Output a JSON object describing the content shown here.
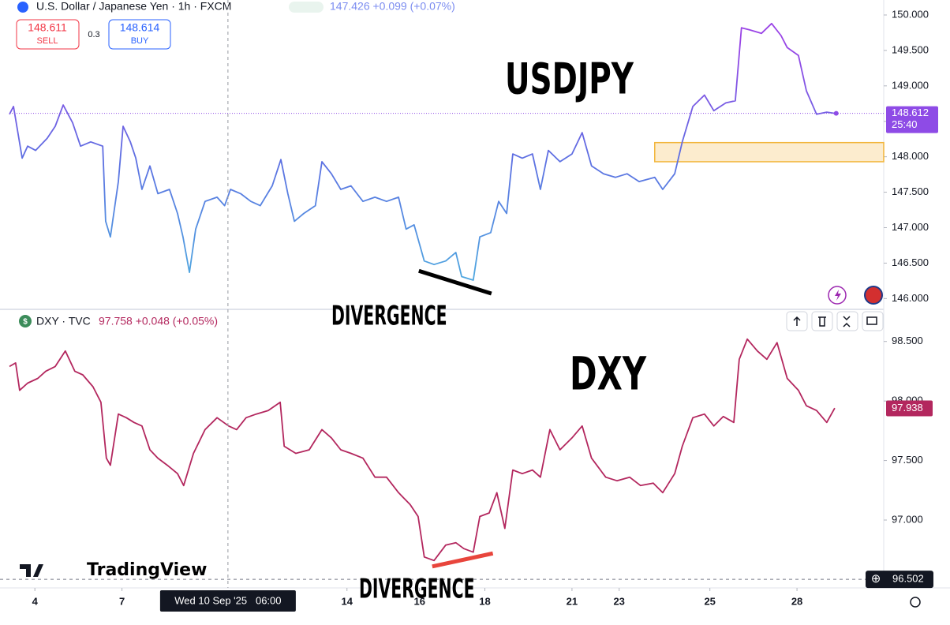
{
  "chart_data": [
    {
      "type": "line",
      "title": "U.S. Dollar / Japanese Yen · 1h · FXCM",
      "subtitle": "147.426 +0.099 (+0.07%)",
      "annotation": "USDJPY",
      "divergence_label": "DIVERGENCE",
      "gradient": [
        "#4fa6e0",
        "#5d6fe2",
        "#9a44e6"
      ],
      "x": [
        0,
        1.1,
        3.5,
        5,
        7.2,
        10.4,
        12.6,
        14.8,
        17.4,
        19.6,
        22.4,
        25.7,
        26.5,
        27.8,
        30,
        31.3,
        33.3,
        34.8,
        36.5,
        38.7,
        40.9,
        44.1,
        46.3,
        47.8,
        49.6,
        51.3,
        53.9,
        57.2,
        59.3,
        60.9,
        63.7,
        66.5,
        69.1,
        72.4,
        74.8,
        76.7,
        78.5,
        81.1,
        84.3,
        86.1,
        88.7,
        91.3,
        94.1,
        97.4,
        100.7,
        103.9,
        107.2,
        109.3,
        111.5,
        114.3,
        117,
        120.2,
        123,
        124.6,
        127.8,
        129.6,
        132.6,
        134.8,
        137,
        138.7,
        141.3,
        144.1,
        146.3,
        148.5,
        151.7,
        155,
        157.8,
        160.4,
        163.7,
        167,
        170.2,
        173.5,
        177.8,
        180,
        183.3,
        185.4,
        188.3,
        191.5,
        194.1,
        197.4,
        200,
        201.7,
        203.9,
        207.2,
        210,
        212.6,
        214.3,
        217.4,
        219.6,
        222.4,
        225.2,
        227.8
      ],
      "values": [
        148.6,
        148.71,
        147.98,
        148.15,
        148.09,
        148.26,
        148.43,
        148.73,
        148.48,
        148.15,
        148.21,
        148.15,
        147.09,
        146.87,
        147.65,
        148.43,
        148.21,
        147.98,
        147.54,
        147.87,
        147.48,
        147.54,
        147.2,
        146.87,
        146.37,
        146.98,
        147.37,
        147.43,
        147.31,
        147.54,
        147.48,
        147.37,
        147.31,
        147.59,
        147.96,
        147.48,
        147.09,
        147.2,
        147.31,
        147.93,
        147.76,
        147.54,
        147.59,
        147.37,
        147.43,
        147.37,
        147.43,
        146.98,
        147.04,
        146.53,
        146.48,
        146.53,
        146.65,
        146.31,
        146.26,
        146.87,
        146.93,
        147.37,
        147.2,
        148.04,
        147.98,
        148.04,
        147.54,
        148.09,
        147.93,
        148.04,
        148.34,
        147.87,
        147.76,
        147.71,
        147.76,
        147.65,
        147.71,
        147.54,
        147.76,
        148.21,
        148.71,
        148.87,
        148.65,
        148.76,
        148.79,
        149.82,
        149.79,
        149.74,
        149.88,
        149.71,
        149.54,
        149.43,
        148.93,
        148.6,
        148.63,
        148.61
      ],
      "xlim": [
        0,
        240.9
      ],
      "ylim": [
        145.87,
        150.1
      ],
      "yticks": [
        {
          "value": 146,
          "label": "146.000"
        },
        {
          "value": 146.5,
          "label": "146.500"
        },
        {
          "value": 147,
          "label": "147.000"
        },
        {
          "value": 147.5,
          "label": "147.500"
        },
        {
          "value": 148,
          "label": "148.000"
        },
        {
          "value": 148.5,
          "label": "148.500"
        },
        {
          "value": 149,
          "label": "149.000"
        },
        {
          "value": 149.5,
          "label": "149.500"
        },
        {
          "value": 150,
          "label": "150.000"
        }
      ],
      "last_price": 148.612,
      "last_price_color": "#8e4be6",
      "countdown": "25:40",
      "zone_start": 177.8,
      "zone": [
        147.93,
        148.2
      ],
      "zone_color": "#f2b53a",
      "trendline": {
        "x": [
          112.8,
          132.8
        ],
        "y": [
          146.39,
          146.07
        ],
        "color": "#000000"
      },
      "sell_price": "148.611",
      "sell_label": "SELL",
      "spread": "0.3",
      "buy_price": "148.614",
      "buy_label": "BUY"
    },
    {
      "type": "line",
      "title": "DXY · TVC",
      "subtitle": "97.758 +0.048 (+0.05%)",
      "annotation": "DXY",
      "divergence_label": "DIVERGENCE",
      "color": "#b3275e",
      "x": [
        0,
        1.7,
        2.8,
        5,
        7.8,
        10,
        12.6,
        15.4,
        18,
        20.2,
        23,
        25.2,
        26.7,
        27.8,
        30,
        32.2,
        34.3,
        36.5,
        38.7,
        40.9,
        43.5,
        46.3,
        48,
        50.7,
        53.9,
        57.2,
        60.4,
        62.6,
        65.2,
        68,
        71.3,
        74.6,
        75.7,
        78.9,
        82.6,
        86.1,
        88.7,
        91.3,
        94.1,
        97.4,
        100.7,
        103.9,
        107.2,
        110.4,
        112.6,
        114.3,
        117,
        120.2,
        123,
        125.2,
        127.8,
        129.6,
        132.2,
        134.3,
        136.5,
        138.7,
        141.3,
        144.1,
        146.3,
        148.9,
        151.7,
        155,
        157.8,
        160.4,
        164.3,
        167.4,
        170.9,
        173.9,
        177.4,
        180,
        183.3,
        185.4,
        188.3,
        191.5,
        194.1,
        196.7,
        199.6,
        201.1,
        203.3,
        206.1,
        208.7,
        211.5,
        214.3,
        217.4,
        219.6,
        222.4,
        225.2,
        227.4
      ],
      "values": [
        98.29,
        98.32,
        98.09,
        98.15,
        98.19,
        98.25,
        98.29,
        98.42,
        98.25,
        98.22,
        98.12,
        97.99,
        97.52,
        97.46,
        97.89,
        97.86,
        97.82,
        97.79,
        97.59,
        97.52,
        97.46,
        97.39,
        97.29,
        97.56,
        97.76,
        97.86,
        97.79,
        97.76,
        97.86,
        97.89,
        97.92,
        97.99,
        97.62,
        97.56,
        97.59,
        97.76,
        97.69,
        97.59,
        97.56,
        97.52,
        97.36,
        97.36,
        97.23,
        97.13,
        97.03,
        96.69,
        96.66,
        96.79,
        96.81,
        96.76,
        96.73,
        97.03,
        97.06,
        97.23,
        96.93,
        97.42,
        97.39,
        97.42,
        97.36,
        97.76,
        97.59,
        97.69,
        97.79,
        97.52,
        97.36,
        97.33,
        97.36,
        97.29,
        97.31,
        97.23,
        97.39,
        97.62,
        97.86,
        97.89,
        97.79,
        97.87,
        97.82,
        98.35,
        98.52,
        98.42,
        98.35,
        98.49,
        98.19,
        98.09,
        97.96,
        97.92,
        97.82,
        97.94
      ],
      "xlim": [
        0,
        240.9
      ],
      "ylim": [
        96.43,
        98.75
      ],
      "yticks": [
        {
          "value": 97,
          "label": "97.000"
        },
        {
          "value": 97.5,
          "label": "97.500"
        },
        {
          "value": 98,
          "label": "98.000"
        },
        {
          "value": 98.5,
          "label": "98.500"
        }
      ],
      "xticks": [
        {
          "value": 7,
          "label": "4"
        },
        {
          "value": 31,
          "label": "7"
        },
        {
          "value": 93,
          "label": "14"
        },
        {
          "value": 113,
          "label": "16"
        },
        {
          "value": 131,
          "label": "18"
        },
        {
          "value": 155,
          "label": "21"
        },
        {
          "value": 168,
          "label": "23"
        },
        {
          "value": 193,
          "label": "25"
        },
        {
          "value": 217,
          "label": "28"
        }
      ],
      "last_price": 97.938,
      "crosshair_price": 96.502,
      "trendline": {
        "x": [
          116.5,
          133.2
        ],
        "y": [
          96.61,
          96.72
        ],
        "color": "#e8453c"
      }
    }
  ],
  "crosshair": {
    "x": 60.2,
    "label": "Wed 10 Sep '25   06:00"
  },
  "brand": "TradingView"
}
